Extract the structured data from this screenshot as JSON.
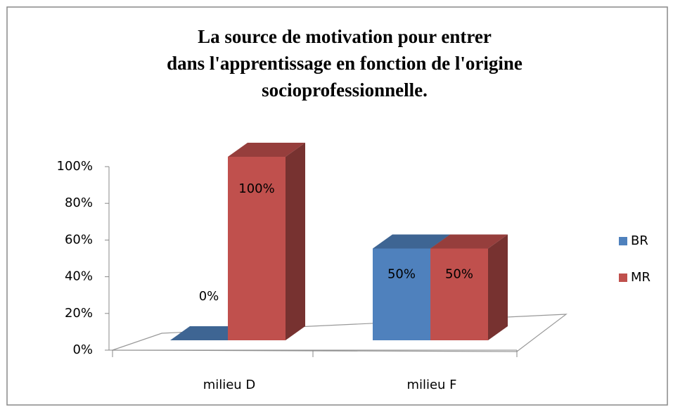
{
  "chart_data": {
    "type": "bar3d",
    "title": "La source de motivation pour entrer dans l'apprentissage en fonction de l'origine socioprofessionnelle.",
    "categories": [
      "milieu D",
      "milieu F"
    ],
    "series": [
      {
        "name": "BR",
        "color": "#4f81bd",
        "values": [
          0,
          50
        ],
        "value_labels": [
          "0%",
          "50%"
        ]
      },
      {
        "name": "MR",
        "color": "#c0504d",
        "values": [
          100,
          50
        ],
        "value_labels": [
          "100%",
          "50%"
        ]
      }
    ],
    "ylim": [
      0,
      100
    ],
    "yticks": [
      {
        "value": 0,
        "label": "0%"
      },
      {
        "value": 20,
        "label": "20%"
      },
      {
        "value": 40,
        "label": "40%"
      },
      {
        "value": 60,
        "label": "60%"
      },
      {
        "value": 80,
        "label": "80%"
      },
      {
        "value": 100,
        "label": "100%"
      }
    ],
    "legend": "right"
  }
}
